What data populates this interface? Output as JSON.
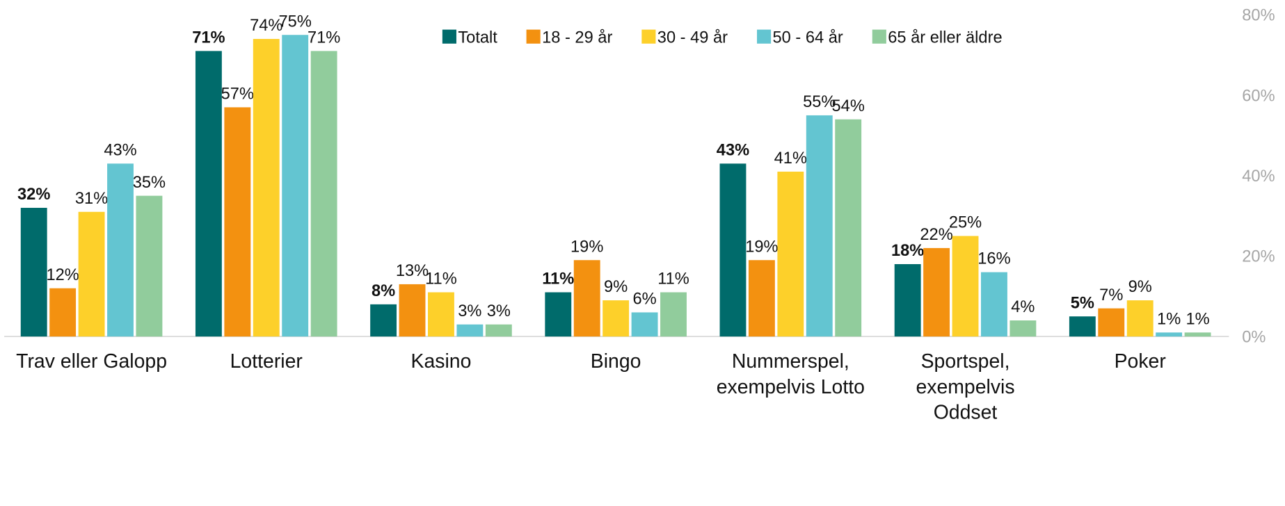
{
  "chart_data": {
    "type": "bar",
    "categories": [
      "Trav eller Galopp",
      "Lotterier",
      "Kasino",
      "Bingo",
      "Nummerspel, exempelvis Lotto",
      "Sportspel, exempelvis Oddset",
      "Poker"
    ],
    "series": [
      {
        "name": "Totalt",
        "color": "#006b6b",
        "values": [
          32,
          71,
          8,
          11,
          43,
          18,
          5
        ],
        "value_labels": [
          "32%",
          "71%",
          "8%",
          "11%",
          "43%",
          "18%",
          "5%"
        ]
      },
      {
        "name": "18 - 29 år",
        "color": "#f39110",
        "values": [
          12,
          57,
          13,
          19,
          19,
          22,
          7
        ],
        "value_labels": [
          "12%",
          "57%",
          "13%",
          "19%",
          "19%",
          "22%",
          "7%"
        ]
      },
      {
        "name": "30 - 49 år",
        "color": "#fdd02a",
        "values": [
          31,
          74,
          11,
          9,
          41,
          25,
          9
        ],
        "value_labels": [
          "31%",
          "74%",
          "11%",
          "9%",
          "41%",
          "25%",
          "9%"
        ]
      },
      {
        "name": "50 - 64 år",
        "color": "#63c5d1",
        "values": [
          43,
          75,
          3,
          6,
          55,
          16,
          1
        ],
        "value_labels": [
          "43%",
          "75%",
          "3%",
          "6%",
          "55%",
          "16%",
          "1%"
        ]
      },
      {
        "name": "65 år eller äldre",
        "color": "#91cc9c",
        "values": [
          35,
          71,
          3,
          11,
          54,
          4,
          1
        ],
        "value_labels": [
          "35%",
          "71%",
          "3%",
          "11%",
          "54%",
          "4%",
          "1%"
        ]
      }
    ],
    "ylim": [
      0,
      80
    ],
    "yticks": [
      {
        "value": 0,
        "label": "0%"
      },
      {
        "value": 20,
        "label": "20%"
      },
      {
        "value": 40,
        "label": "40%"
      },
      {
        "value": 60,
        "label": "60%"
      },
      {
        "value": 80,
        "label": "80%"
      }
    ],
    "grid": false,
    "legend": "top"
  }
}
